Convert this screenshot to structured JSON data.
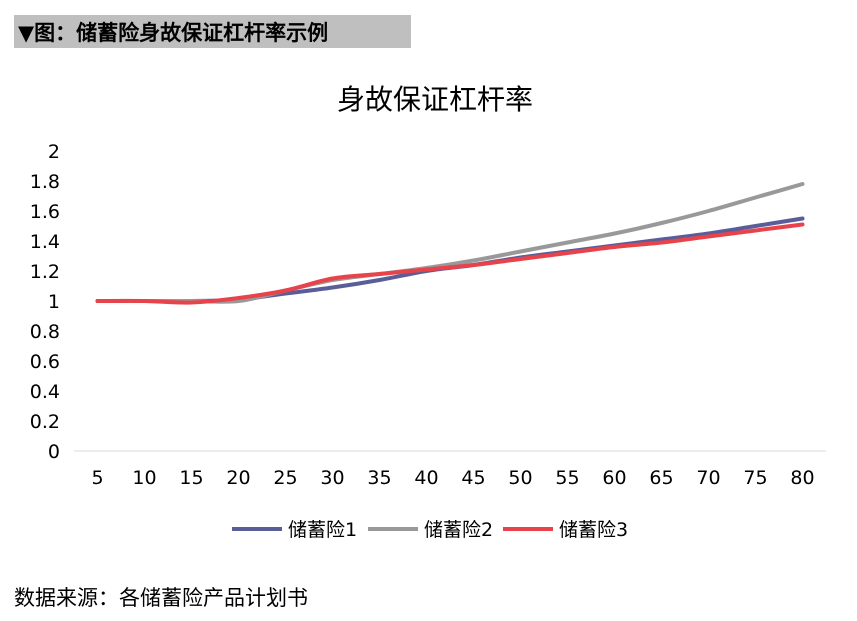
{
  "header": {
    "title": "▼图：储蓄险身故保证杠杆率示例"
  },
  "source": {
    "text": "数据来源：各储蓄险产品计划书"
  },
  "colors": {
    "series1": "#5a5e98",
    "series2": "#999999",
    "series3": "#e8424b",
    "axis": "#d9d9d9",
    "header_bg": "#bfbfbf"
  },
  "chart_data": {
    "type": "line",
    "title": "身故保证杠杆率",
    "x": [
      5,
      10,
      15,
      20,
      25,
      30,
      35,
      40,
      45,
      50,
      55,
      60,
      65,
      70,
      75,
      80
    ],
    "yticks": [
      "0",
      "0.2",
      "0.4",
      "0.6",
      "0.8",
      "1",
      "1.2",
      "1.4",
      "1.6",
      "1.8",
      "2"
    ],
    "ylim": [
      0,
      2
    ],
    "grid": false,
    "legend_position": "bottom",
    "series": [
      {
        "name": "储蓄险1",
        "color": "#5a5e98",
        "values": [
          1.0,
          1.0,
          1.0,
          1.01,
          1.05,
          1.09,
          1.14,
          1.2,
          1.24,
          1.29,
          1.33,
          1.37,
          1.41,
          1.45,
          1.5,
          1.55
        ]
      },
      {
        "name": "储蓄险2",
        "color": "#999999",
        "values": [
          1.0,
          1.0,
          1.0,
          1.0,
          1.07,
          1.14,
          1.18,
          1.22,
          1.27,
          1.33,
          1.39,
          1.45,
          1.52,
          1.6,
          1.69,
          1.78
        ]
      },
      {
        "name": "储蓄险3",
        "color": "#e8424b",
        "values": [
          1.0,
          1.0,
          0.99,
          1.02,
          1.07,
          1.15,
          1.18,
          1.21,
          1.24,
          1.28,
          1.32,
          1.36,
          1.39,
          1.43,
          1.47,
          1.51
        ]
      }
    ]
  }
}
